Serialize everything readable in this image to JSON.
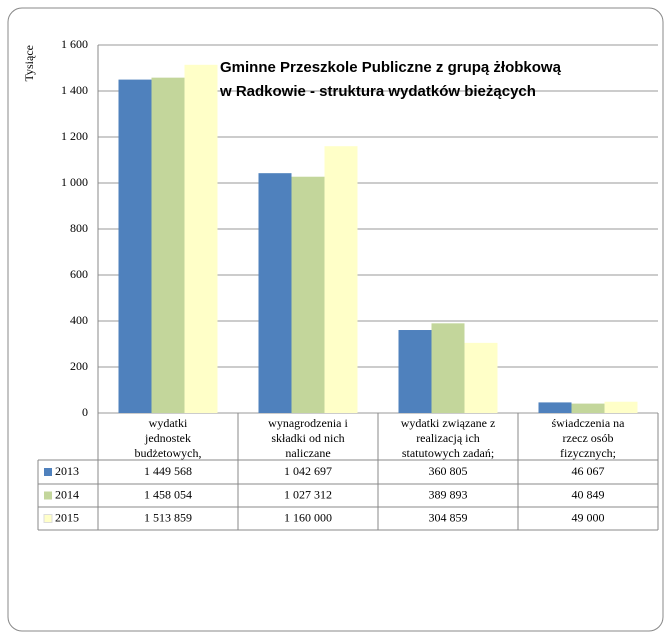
{
  "chart_data": {
    "type": "bar",
    "title": [
      "Gminne Przeszkole Publiczne z grupą żłobkową",
      "w Radkowie - struktura wydatków bieżących"
    ],
    "y_label": "Tysiące",
    "categories": [
      [
        "wydatki",
        "jednostek",
        "budżetowych,"
      ],
      [
        "wynagrodzenia i",
        "składki od nich",
        "naliczane"
      ],
      [
        "wydatki związane z",
        "realizacją ich",
        "statutowych zadań;"
      ],
      [
        "świadczenia na",
        "rzecz osób",
        "fizycznych;"
      ]
    ],
    "series": [
      {
        "name": "2013",
        "color": "#4f81bd",
        "values": [
          1449.568,
          1042.697,
          360.805,
          46.067
        ],
        "value_labels": [
          "1 449 568",
          "1 042 697",
          "360 805",
          "46 067"
        ]
      },
      {
        "name": "2014",
        "color": "#c3d69b",
        "values": [
          1458.054,
          1027.312,
          389.893,
          40.849
        ],
        "value_labels": [
          "1 458 054",
          "1 027 312",
          "389 893",
          "40 849"
        ]
      },
      {
        "name": "2015",
        "color": "#ffffc8",
        "values": [
          1513.859,
          1160.0,
          304.859,
          49.0
        ],
        "value_labels": [
          "1 513 859",
          "1 160 000",
          "304 859",
          "49 000"
        ]
      }
    ],
    "ylim": [
      0,
      1600
    ],
    "yticks": [
      0,
      200,
      400,
      600,
      800,
      {
        "value": 1000,
        "label": "1 000"
      },
      {
        "value": 1200,
        "label": "1 200"
      },
      {
        "value": 1400,
        "label": "1 400"
      },
      {
        "value": 1600,
        "label": "1 600"
      }
    ],
    "grid": true,
    "data_table": true
  }
}
